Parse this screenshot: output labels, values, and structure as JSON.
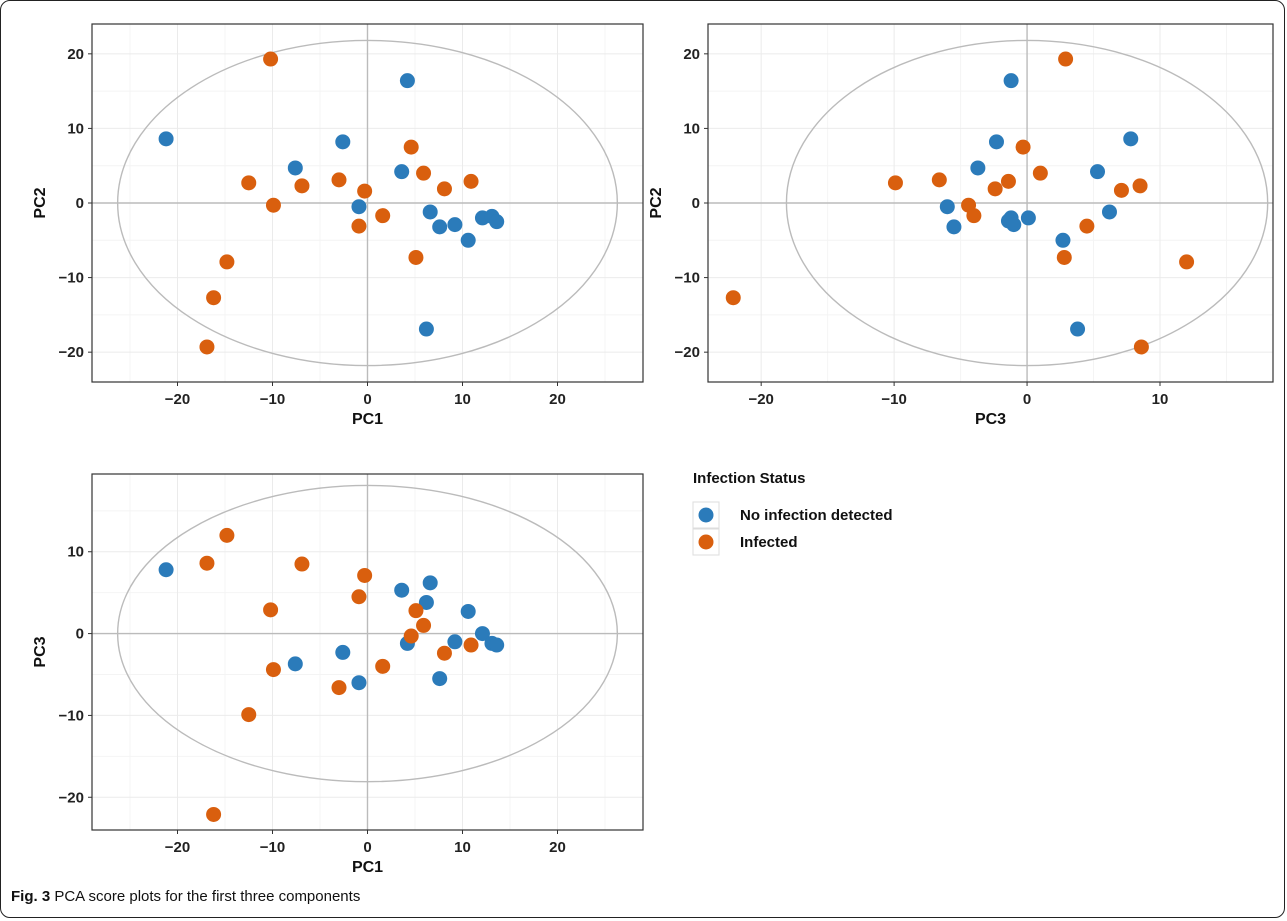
{
  "caption": {
    "label": "Fig. 3",
    "text": " PCA score plots for the first three components"
  },
  "legend": {
    "title": "Infection Status",
    "entries": [
      {
        "label": "No infection detected",
        "color": "#2B7BBA"
      },
      {
        "label": "Infected",
        "color": "#D95F0E"
      }
    ]
  },
  "colors": {
    "no_infection": "#2B7BBA",
    "infected": "#D95F0E",
    "ellipse": "#BBBBBB",
    "zero_line": "#BBBBBB",
    "grid": "#EBEBEB"
  },
  "chart_data": [
    {
      "type": "scatter",
      "xlabel": "PC1",
      "ylabel": "PC2",
      "xlim": [
        -29,
        29
      ],
      "ylim": [
        -24,
        24
      ],
      "xticks": [
        -20,
        -10,
        0,
        10,
        20
      ],
      "yticks": [
        -20,
        -10,
        0,
        10,
        20
      ],
      "grid": true,
      "ellipse": {
        "rx": 26.3,
        "ry": 21.8
      },
      "series": [
        {
          "name": "No infection detected",
          "color": "#2B7BBA",
          "points": [
            [
              -21.2,
              8.6
            ],
            [
              4.2,
              16.4
            ],
            [
              -2.6,
              8.2
            ],
            [
              -7.6,
              4.7
            ],
            [
              3.6,
              4.2
            ],
            [
              -0.9,
              -0.5
            ],
            [
              6.6,
              -1.2
            ],
            [
              7.6,
              -3.2
            ],
            [
              9.2,
              -2.9
            ],
            [
              10.6,
              -5.0
            ],
            [
              12.1,
              -2.0
            ],
            [
              13.1,
              -1.8
            ],
            [
              13.6,
              -2.5
            ],
            [
              6.2,
              -16.9
            ]
          ]
        },
        {
          "name": "Infected",
          "color": "#D95F0E",
          "points": [
            [
              -10.2,
              19.3
            ],
            [
              4.6,
              7.5
            ],
            [
              -12.5,
              2.7
            ],
            [
              -6.9,
              2.3
            ],
            [
              -3.0,
              3.1
            ],
            [
              -0.3,
              1.6
            ],
            [
              5.9,
              4.0
            ],
            [
              8.1,
              1.9
            ],
            [
              10.9,
              2.9
            ],
            [
              -9.9,
              -0.3
            ],
            [
              1.6,
              -1.7
            ],
            [
              -0.9,
              -3.1
            ],
            [
              5.1,
              -7.3
            ],
            [
              -14.8,
              -7.9
            ],
            [
              -16.2,
              -12.7
            ],
            [
              -16.9,
              -19.3
            ]
          ]
        }
      ]
    },
    {
      "type": "scatter",
      "xlabel": "PC3",
      "ylabel": "PC2",
      "xlim": [
        -24,
        18.5
      ],
      "ylim": [
        -24,
        24
      ],
      "xticks": [
        -20,
        -10,
        0,
        10
      ],
      "yticks": [
        -20,
        -10,
        0,
        10,
        20
      ],
      "grid": true,
      "ellipse": {
        "rx": 18.1,
        "ry": 21.8
      },
      "series": [
        {
          "name": "No infection detected",
          "color": "#2B7BBA",
          "points": [
            [
              -1.2,
              16.4
            ],
            [
              -2.3,
              8.2
            ],
            [
              7.8,
              8.6
            ],
            [
              -3.7,
              4.7
            ],
            [
              5.3,
              4.2
            ],
            [
              -6.0,
              -0.5
            ],
            [
              -5.5,
              -3.2
            ],
            [
              -1.2,
              -2.0
            ],
            [
              -1.4,
              -2.4
            ],
            [
              -1.0,
              -2.9
            ],
            [
              0.1,
              -2.0
            ],
            [
              6.2,
              -1.2
            ],
            [
              2.7,
              -5.0
            ],
            [
              3.8,
              -16.9
            ]
          ]
        },
        {
          "name": "Infected",
          "color": "#D95F0E",
          "points": [
            [
              2.9,
              19.3
            ],
            [
              -0.3,
              7.5
            ],
            [
              -9.9,
              2.7
            ],
            [
              -6.6,
              3.1
            ],
            [
              1.0,
              4.0
            ],
            [
              -1.4,
              2.9
            ],
            [
              -2.4,
              1.9
            ],
            [
              7.1,
              1.7
            ],
            [
              8.5,
              2.3
            ],
            [
              -4.4,
              -0.3
            ],
            [
              -4.0,
              -1.7
            ],
            [
              4.5,
              -3.1
            ],
            [
              2.8,
              -7.3
            ],
            [
              12.0,
              -7.9
            ],
            [
              -22.1,
              -12.7
            ],
            [
              8.6,
              -19.3
            ]
          ]
        }
      ]
    },
    {
      "type": "scatter",
      "xlabel": "PC1",
      "ylabel": "PC3",
      "xlim": [
        -29,
        29
      ],
      "ylim": [
        -24,
        19.5
      ],
      "xticks": [
        -20,
        -10,
        0,
        10,
        20
      ],
      "yticks": [
        -20,
        -10,
        0,
        10
      ],
      "grid": true,
      "ellipse": {
        "rx": 26.3,
        "ry": 18.1
      },
      "series": [
        {
          "name": "No infection detected",
          "color": "#2B7BBA",
          "points": [
            [
              -21.2,
              7.8
            ],
            [
              6.6,
              6.2
            ],
            [
              3.6,
              5.3
            ],
            [
              6.2,
              3.8
            ],
            [
              10.6,
              2.7
            ],
            [
              12.1,
              0.0
            ],
            [
              13.1,
              -1.2
            ],
            [
              13.6,
              -1.4
            ],
            [
              9.2,
              -1.0
            ],
            [
              4.2,
              -1.2
            ],
            [
              -2.6,
              -2.3
            ],
            [
              -7.6,
              -3.7
            ],
            [
              -0.9,
              -6.0
            ],
            [
              7.6,
              -5.5
            ]
          ]
        },
        {
          "name": "Infected",
          "color": "#D95F0E",
          "points": [
            [
              -14.8,
              12.0
            ],
            [
              -16.9,
              8.6
            ],
            [
              -6.9,
              8.5
            ],
            [
              -0.3,
              7.1
            ],
            [
              -0.9,
              4.5
            ],
            [
              -10.2,
              2.9
            ],
            [
              5.1,
              2.8
            ],
            [
              5.9,
              1.0
            ],
            [
              4.6,
              -0.3
            ],
            [
              8.1,
              -2.4
            ],
            [
              10.9,
              -1.4
            ],
            [
              1.6,
              -4.0
            ],
            [
              -9.9,
              -4.4
            ],
            [
              -3.0,
              -6.6
            ],
            [
              -12.5,
              -9.9
            ],
            [
              -16.2,
              -22.1
            ]
          ]
        }
      ]
    }
  ]
}
